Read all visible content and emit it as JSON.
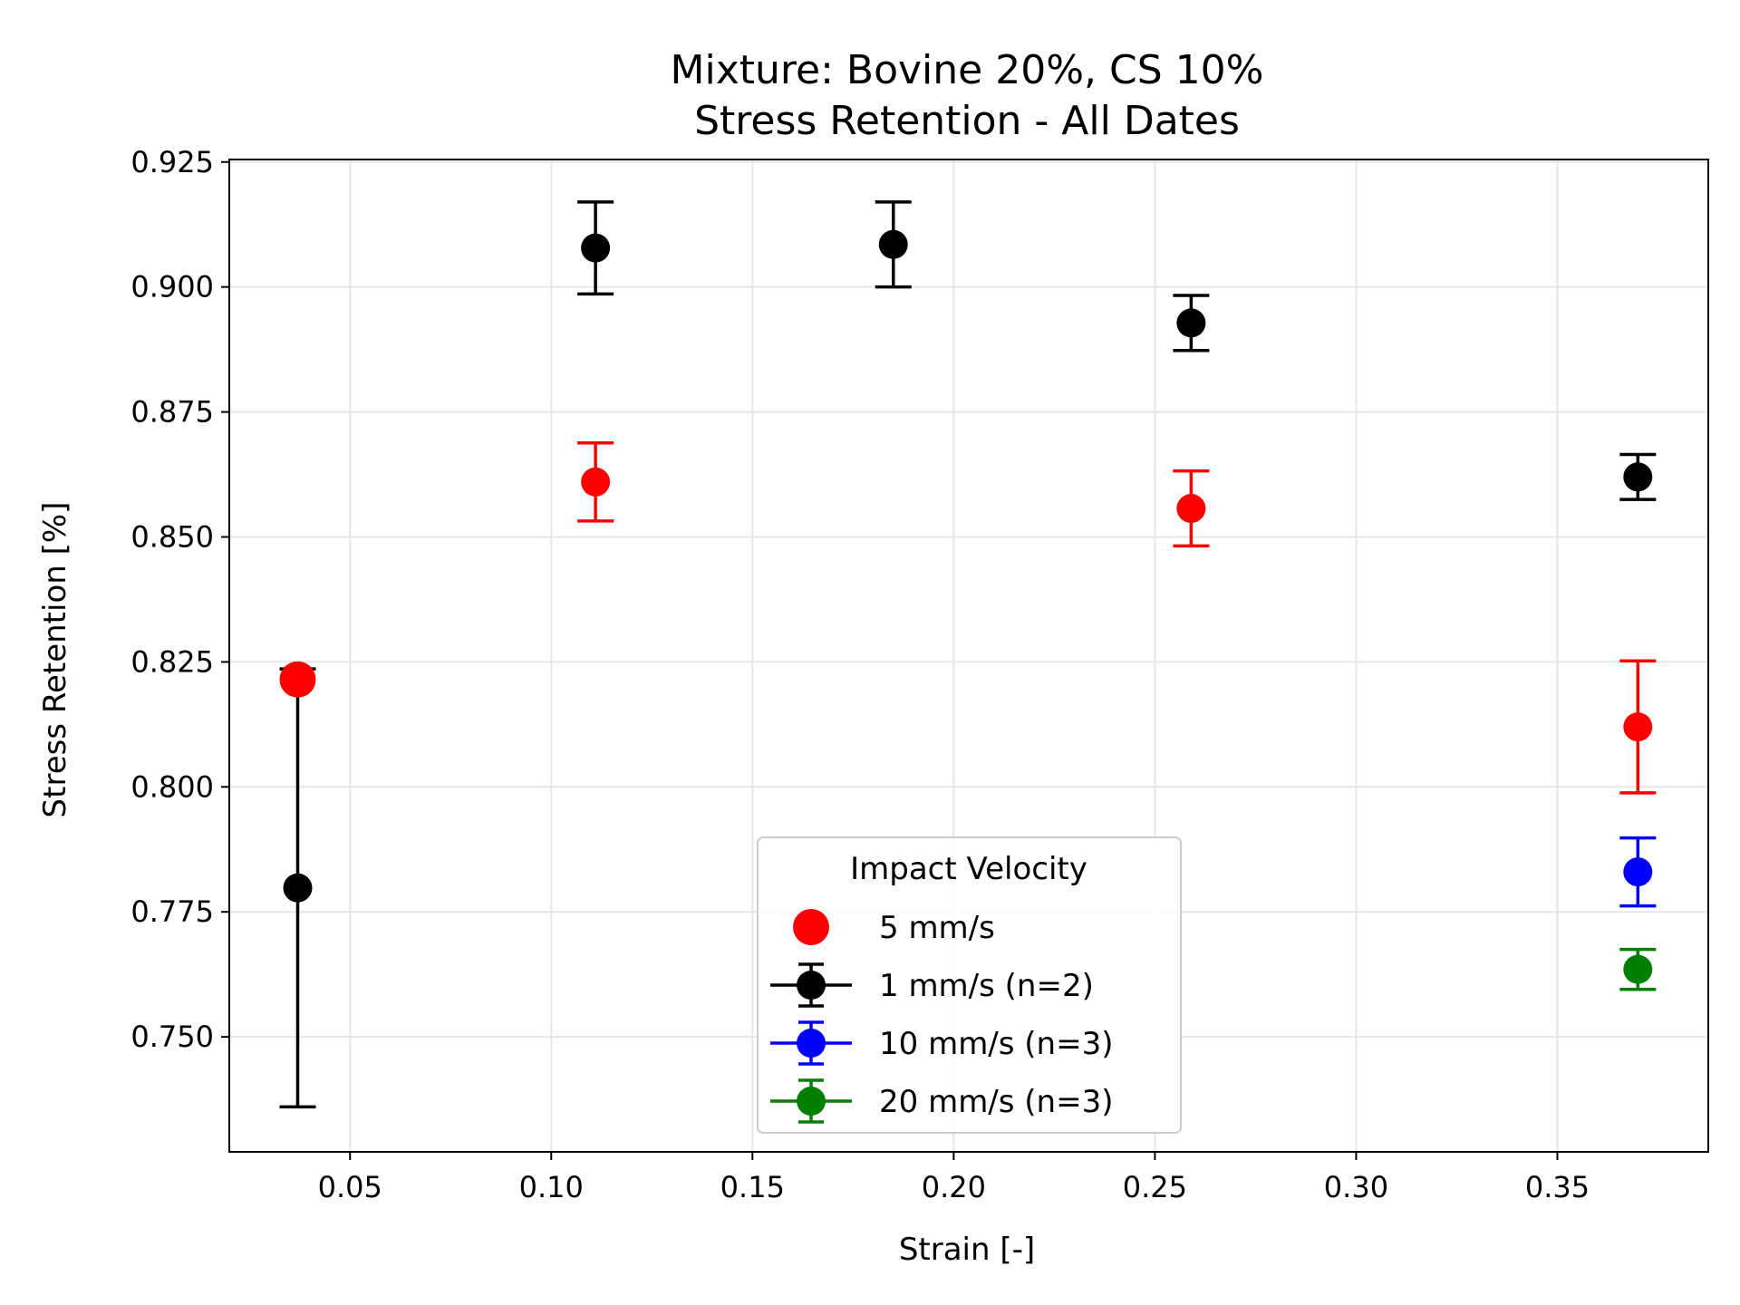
{
  "chart_data": {
    "type": "scatter",
    "title_lines": [
      "Mixture: Bovine 20%, CS 10%",
      "Stress Retention - All Dates"
    ],
    "xlabel": "Strain [-]",
    "ylabel": "Stress Retention [%]",
    "xlim": [
      0.02,
      0.3875
    ],
    "ylim": [
      0.727,
      0.9255
    ],
    "x_ticks": [
      0.05,
      0.1,
      0.15,
      0.2,
      0.25,
      0.3,
      0.35
    ],
    "x_tick_labels": [
      "0.05",
      "0.10",
      "0.15",
      "0.20",
      "0.25",
      "0.30",
      "0.35"
    ],
    "y_ticks": [
      0.75,
      0.775,
      0.8,
      0.825,
      0.85,
      0.875,
      0.9,
      0.925
    ],
    "y_tick_labels": [
      "0.750",
      "0.775",
      "0.800",
      "0.825",
      "0.850",
      "0.875",
      "0.900",
      "0.925"
    ],
    "grid": true,
    "legend": {
      "title": "Impact Velocity",
      "placement": "lower-center"
    },
    "series": [
      {
        "name": "5 mm/s",
        "color": "#ff0000",
        "errorbars": true,
        "in_legend_errorbar": false,
        "points": [
          {
            "x": 0.037,
            "y": 0.8215,
            "err": null
          },
          {
            "x": 0.111,
            "y": 0.861,
            "err": 0.0078
          },
          {
            "x": 0.259,
            "y": 0.8557,
            "err": 0.0075
          },
          {
            "x": 0.37,
            "y": 0.812,
            "err": 0.0132
          }
        ]
      },
      {
        "name": "1 mm/s (n=2)",
        "color": "#000000",
        "errorbars": true,
        "in_legend_errorbar": true,
        "points": [
          {
            "x": 0.037,
            "y": 0.7798,
            "err": 0.0438
          },
          {
            "x": 0.111,
            "y": 0.9078,
            "err": 0.0092
          },
          {
            "x": 0.185,
            "y": 0.9085,
            "err": 0.0085
          },
          {
            "x": 0.259,
            "y": 0.8928,
            "err": 0.0055
          },
          {
            "x": 0.37,
            "y": 0.862,
            "err": 0.0045
          }
        ]
      },
      {
        "name": "10 mm/s (n=3)",
        "color": "#0000ff",
        "errorbars": true,
        "in_legend_errorbar": true,
        "points": [
          {
            "x": 0.37,
            "y": 0.783,
            "err": 0.0068
          }
        ]
      },
      {
        "name": "20 mm/s (n=3)",
        "color": "#008000",
        "errorbars": true,
        "in_legend_errorbar": true,
        "points": [
          {
            "x": 0.37,
            "y": 0.7635,
            "err": 0.004
          }
        ]
      }
    ]
  }
}
